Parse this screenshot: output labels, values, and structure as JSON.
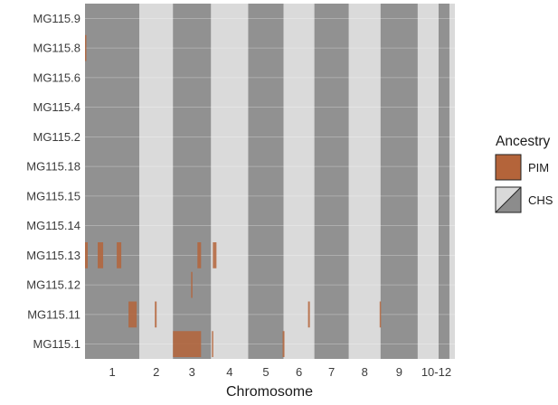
{
  "chart_data": {
    "type": "heatmap",
    "xlabel": "Chromosome",
    "x_tick_labels": [
      "1",
      "2",
      "3",
      "4",
      "5",
      "6",
      "7",
      "8",
      "9",
      "10-12"
    ],
    "y_tick_labels": [
      "MG115.9",
      "MG115.8",
      "MG115.6",
      "MG115.4",
      "MG115.2",
      "MG115.18",
      "MG115.15",
      "MG115.14",
      "MG115.13",
      "MG115.12",
      "MG115.11",
      "MG115.1"
    ],
    "legend": {
      "title": "Ancestry",
      "entries": [
        {
          "label": "PIM",
          "color": "#b4643a"
        },
        {
          "label": "CHS",
          "color_dark": "#8c8c8c",
          "color_light": "#d9d9d9"
        }
      ]
    },
    "chromosome_blocks": [
      {
        "chromosome": "1",
        "start": 0,
        "end": 60,
        "shade": "dark"
      },
      {
        "chromosome": "2",
        "start": 60,
        "end": 97,
        "shade": "light"
      },
      {
        "chromosome": "3",
        "start": 97,
        "end": 139,
        "shade": "dark"
      },
      {
        "chromosome": "4",
        "start": 139,
        "end": 180,
        "shade": "light"
      },
      {
        "chromosome": "5",
        "start": 180,
        "end": 219,
        "shade": "dark"
      },
      {
        "chromosome": "6",
        "start": 219,
        "end": 253,
        "shade": "light"
      },
      {
        "chromosome": "7",
        "start": 253,
        "end": 291,
        "shade": "dark"
      },
      {
        "chromosome": "8",
        "start": 291,
        "end": 326,
        "shade": "light"
      },
      {
        "chromosome": "9",
        "start": 326,
        "end": 367,
        "shade": "dark"
      },
      {
        "chromosome": "10",
        "start": 367,
        "end": 390,
        "shade": "light"
      },
      {
        "chromosome": "11",
        "start": 390,
        "end": 402,
        "shade": "dark"
      },
      {
        "chromosome": "12",
        "start": 402,
        "end": 408,
        "shade": "light"
      }
    ],
    "pim_segments": [
      {
        "sample": "MG115.8",
        "start": 0,
        "end": 1.5
      },
      {
        "sample": "MG115.13",
        "start": 0,
        "end": 3
      },
      {
        "sample": "MG115.13",
        "start": 14,
        "end": 20
      },
      {
        "sample": "MG115.13",
        "start": 35,
        "end": 40
      },
      {
        "sample": "MG115.13",
        "start": 124,
        "end": 128
      },
      {
        "sample": "MG115.13",
        "start": 141,
        "end": 145
      },
      {
        "sample": "MG115.12",
        "start": 117,
        "end": 118.5
      },
      {
        "sample": "MG115.11",
        "start": 48,
        "end": 57
      },
      {
        "sample": "MG115.11",
        "start": 77,
        "end": 79
      },
      {
        "sample": "MG115.11",
        "start": 246,
        "end": 248
      },
      {
        "sample": "MG115.11",
        "start": 325,
        "end": 326.5
      },
      {
        "sample": "MG115.1",
        "start": 97,
        "end": 128
      },
      {
        "sample": "MG115.1",
        "start": 140,
        "end": 141.5
      },
      {
        "sample": "MG115.1",
        "start": 218,
        "end": 220
      }
    ]
  }
}
